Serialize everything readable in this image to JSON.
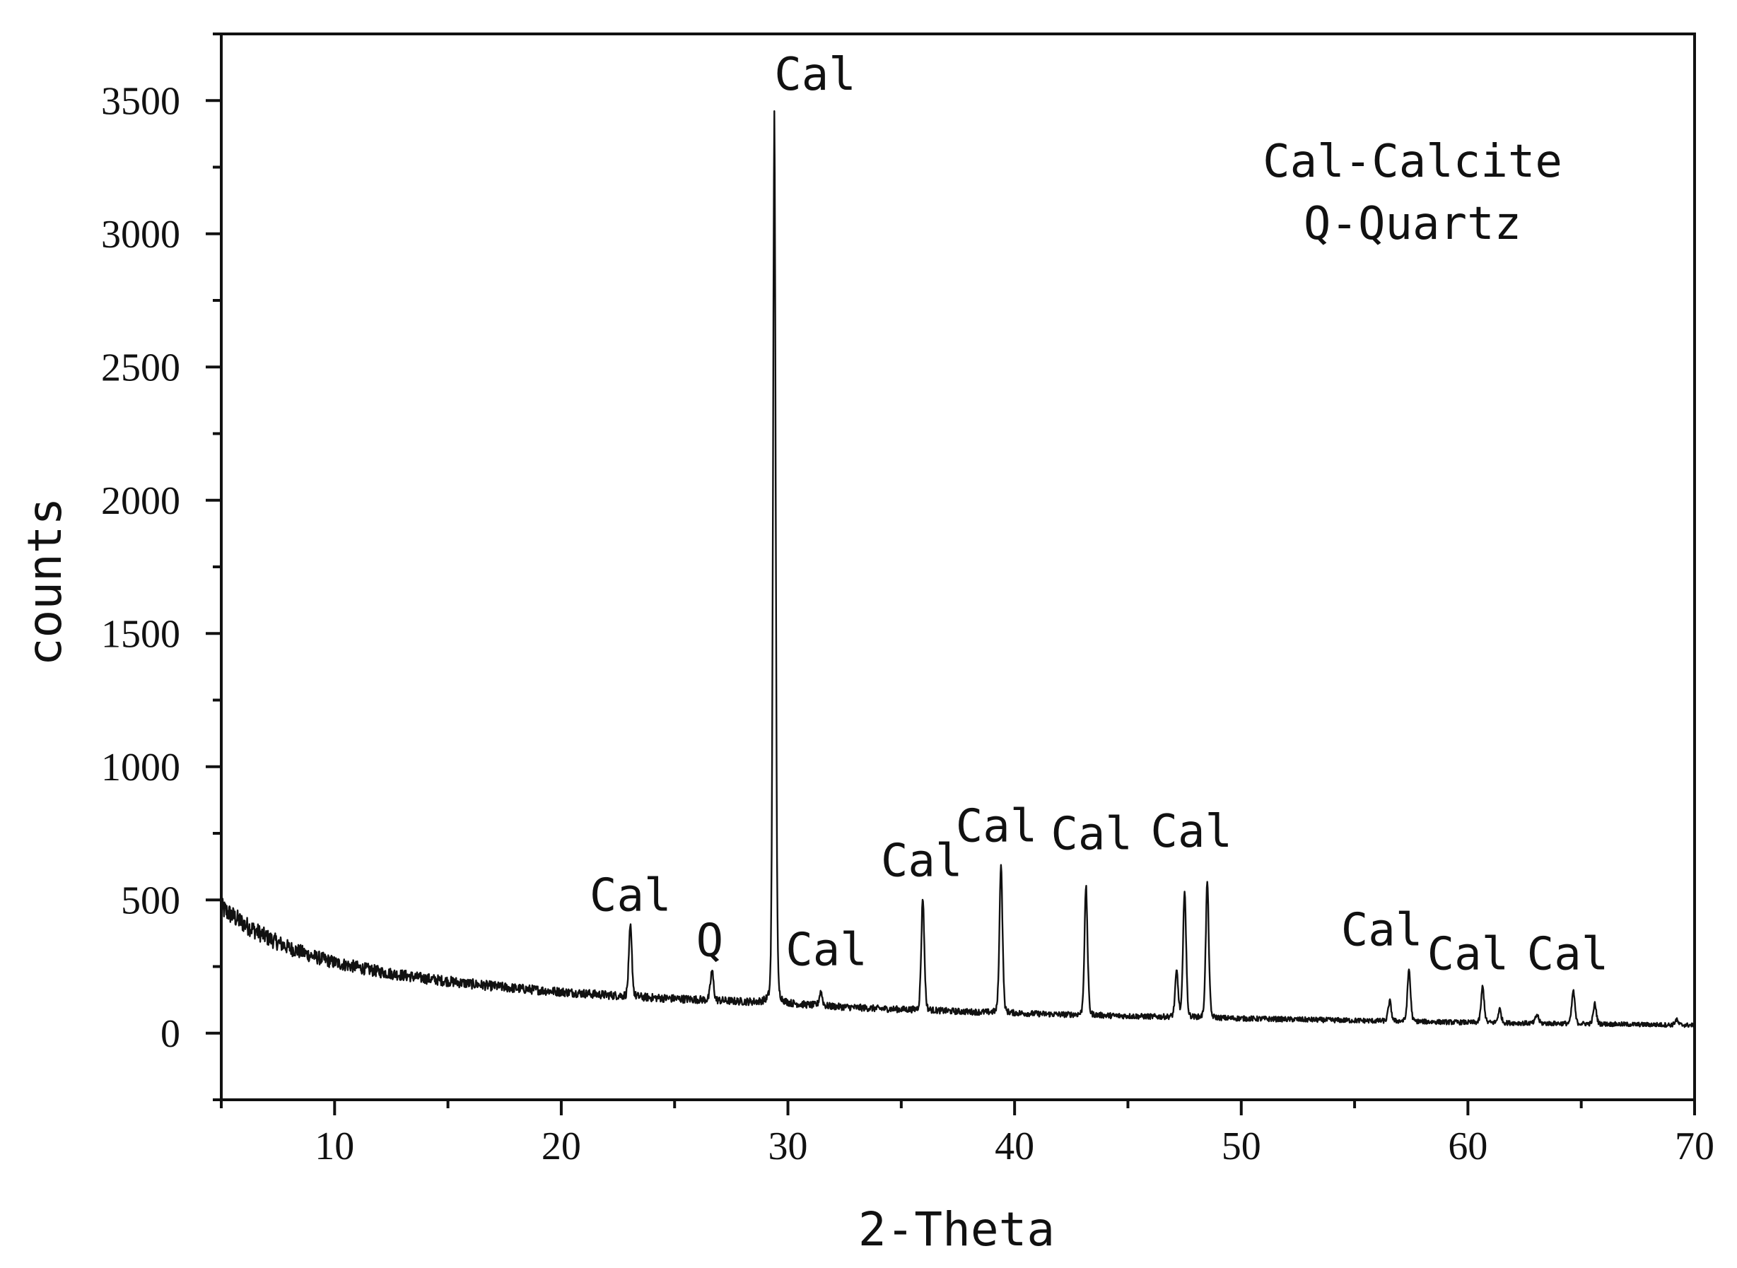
{
  "chart_data": {
    "type": "line",
    "title": "",
    "xlabel": "2-Theta",
    "ylabel": "counts",
    "xlim": [
      5,
      70
    ],
    "ylim": [
      -250,
      3750
    ],
    "x_ticks": [
      10,
      20,
      30,
      40,
      50,
      60,
      70
    ],
    "y_ticks": [
      0,
      500,
      1000,
      1500,
      2000,
      2500,
      3000,
      3500
    ],
    "grid": false,
    "legend": {
      "position": "top-right",
      "lines": [
        "Cal-Calcite",
        "Q-Quartz"
      ]
    },
    "baseline": [
      [
        5,
        470
      ],
      [
        6,
        410
      ],
      [
        7,
        360
      ],
      [
        8,
        320
      ],
      [
        9,
        290
      ],
      [
        10,
        265
      ],
      [
        12,
        230
      ],
      [
        14,
        205
      ],
      [
        16,
        185
      ],
      [
        18,
        168
      ],
      [
        20,
        155
      ],
      [
        22,
        143
      ],
      [
        24,
        133
      ],
      [
        26,
        126
      ],
      [
        28,
        118
      ],
      [
        30,
        110
      ],
      [
        32,
        100
      ],
      [
        34,
        92
      ],
      [
        36,
        86
      ],
      [
        38,
        80
      ],
      [
        40,
        75
      ],
      [
        42,
        70
      ],
      [
        44,
        66
      ],
      [
        46,
        62
      ],
      [
        48,
        58
      ],
      [
        50,
        55
      ],
      [
        52,
        52
      ],
      [
        54,
        49
      ],
      [
        56,
        46
      ],
      [
        58,
        43
      ],
      [
        60,
        40
      ],
      [
        62,
        38
      ],
      [
        64,
        36
      ],
      [
        66,
        34
      ],
      [
        68,
        32
      ],
      [
        70,
        30
      ]
    ],
    "peaks": [
      {
        "x": 23.05,
        "y": 400,
        "label": "Cal"
      },
      {
        "x": 26.65,
        "y": 235,
        "label": "Q"
      },
      {
        "x": 29.4,
        "y": 3450,
        "label": "Cal"
      },
      {
        "x": 31.45,
        "y": 155,
        "label": "Cal"
      },
      {
        "x": 35.95,
        "y": 510,
        "label": "Cal"
      },
      {
        "x": 39.4,
        "y": 640,
        "label": "Cal"
      },
      {
        "x": 43.15,
        "y": 550,
        "label": "Cal"
      },
      {
        "x": 47.15,
        "y": 230,
        "label": ""
      },
      {
        "x": 47.5,
        "y": 540,
        "label": "Cal"
      },
      {
        "x": 48.5,
        "y": 570,
        "label": "Cal"
      },
      {
        "x": 56.55,
        "y": 120,
        "label": ""
      },
      {
        "x": 57.4,
        "y": 240,
        "label": "Cal"
      },
      {
        "x": 60.65,
        "y": 175,
        "label": "Cal"
      },
      {
        "x": 61.4,
        "y": 90,
        "label": ""
      },
      {
        "x": 63.05,
        "y": 70,
        "label": ""
      },
      {
        "x": 64.65,
        "y": 160,
        "label": "Cal"
      },
      {
        "x": 65.6,
        "y": 110,
        "label": ""
      },
      {
        "x": 69.2,
        "y": 50,
        "label": ""
      }
    ],
    "annotations": [
      {
        "text": "Cal",
        "x": 23.05,
        "y": 460
      },
      {
        "text": "Q",
        "x": 26.55,
        "y": 290
      },
      {
        "text": "Cal",
        "x": 31.7,
        "y": 255
      },
      {
        "text": "Cal",
        "x": 31.2,
        "y": 3540
      },
      {
        "text": "Cal",
        "x": 35.9,
        "y": 590
      },
      {
        "text": "Cal",
        "x": 39.2,
        "y": 720
      },
      {
        "text": "Cal",
        "x": 43.4,
        "y": 690
      },
      {
        "text": "Cal",
        "x": 47.8,
        "y": 700
      },
      {
        "text": "Cal",
        "x": 56.2,
        "y": 330
      },
      {
        "text": "Cal",
        "x": 60.0,
        "y": 240
      },
      {
        "text": "Cal",
        "x": 64.4,
        "y": 240
      }
    ]
  }
}
